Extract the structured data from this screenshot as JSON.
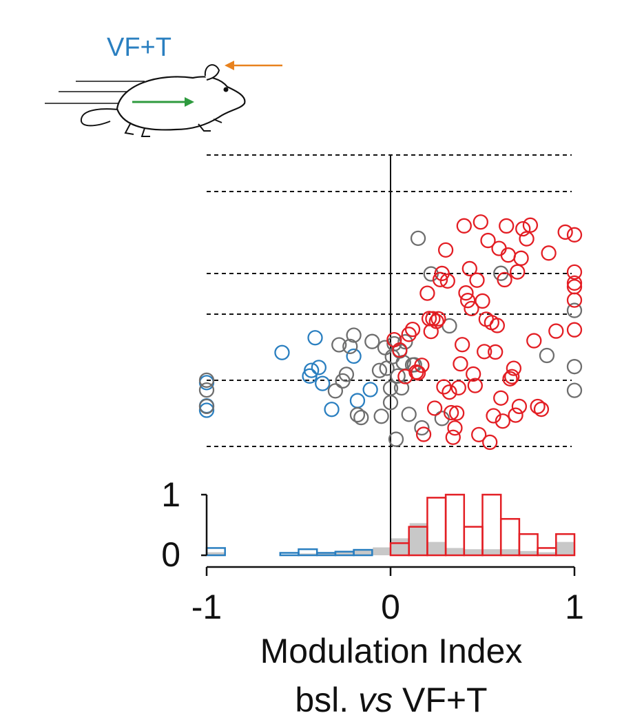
{
  "icon": {
    "label": "VF+T",
    "label_color": "#2a7fc0",
    "name": "running-mouse-icon",
    "arrow_colors": {
      "head": "#e8821e",
      "body": "#2e9a3e"
    }
  },
  "colors": {
    "suppressed": "#2a7fc0",
    "enhanced": "#e31e24",
    "nonsignificant": "#6e6e6e",
    "hist_fill": "#c8c8c8"
  },
  "chart_data": [
    {
      "type": "scatter",
      "title": "",
      "xlabel": "",
      "ylabel": "",
      "xlim": [
        -1,
        1
      ],
      "dashed_rows": [
        1,
        2,
        3,
        4,
        5,
        6
      ],
      "zero_line": true,
      "series": [
        {
          "class": "suppressed",
          "color": "#2a7fc0",
          "x": [
            -1.0,
            -1.0,
            -1.0,
            -0.59,
            -0.43,
            -0.44,
            -0.41,
            -0.32,
            -0.37,
            -0.39,
            -0.2,
            -0.18,
            -0.11
          ]
        },
        {
          "class": "nonsignificant",
          "color": "#6e6e6e",
          "x": [
            -1.0,
            -1.0,
            -1.0,
            -0.3,
            -0.28,
            -0.26,
            -0.24,
            -0.22,
            -0.2,
            -0.18,
            -0.16,
            -0.1,
            -0.06,
            -0.05,
            -0.03,
            -0.02,
            0.0,
            0.0,
            0.01,
            0.02,
            0.03,
            0.04,
            0.05,
            0.06,
            0.07,
            0.08,
            0.1,
            0.12,
            0.13,
            0.15,
            0.17,
            0.22,
            0.28,
            0.32,
            0.6,
            0.85,
            1.0,
            1.0,
            1.0
          ]
        },
        {
          "class": "enhanced",
          "color": "#e31e24",
          "x": [
            0.02,
            0.05,
            0.08,
            0.1,
            0.12,
            0.14,
            0.15,
            0.17,
            0.18,
            0.2,
            0.21,
            0.22,
            0.23,
            0.24,
            0.25,
            0.26,
            0.27,
            0.28,
            0.29,
            0.3,
            0.31,
            0.32,
            0.33,
            0.34,
            0.35,
            0.36,
            0.37,
            0.38,
            0.39,
            0.4,
            0.41,
            0.42,
            0.43,
            0.44,
            0.45,
            0.46,
            0.47,
            0.48,
            0.49,
            0.5,
            0.51,
            0.52,
            0.53,
            0.54,
            0.55,
            0.56,
            0.57,
            0.58,
            0.59,
            0.6,
            0.61,
            0.62,
            0.63,
            0.64,
            0.65,
            0.66,
            0.67,
            0.68,
            0.69,
            0.7,
            0.71,
            0.72,
            0.74,
            0.76,
            0.78,
            0.8,
            0.82,
            0.86,
            0.9,
            0.95,
            1.0,
            1.0,
            1.0,
            1.0,
            1.0,
            1.0
          ]
        }
      ]
    },
    {
      "type": "bar",
      "title": "",
      "xlabel": "Modulation Index",
      "xlabel_line2_pre": "bsl. ",
      "xlabel_line2_em": "vs",
      "xlabel_line2_post": " VF+T",
      "ylabel": "",
      "xlim": [
        -1,
        1
      ],
      "ylim": [
        0,
        1
      ],
      "yticks": [
        "1",
        "0"
      ],
      "xticks": [
        "-1",
        "0",
        "1"
      ],
      "bin_width": 0.1,
      "bin_edges_start": -1.0,
      "series": [
        {
          "name": "",
          "class": "all",
          "color": "#c8c8c8",
          "values": [
            0.05,
            0.0,
            0.0,
            0.0,
            0.0,
            0.03,
            0.05,
            0.06,
            0.1,
            0.13,
            0.28,
            0.53,
            0.22,
            0.12,
            0.1,
            0.1,
            0.1,
            0.07,
            0.05,
            0.22
          ]
        },
        {
          "name": "",
          "class": "suppressed",
          "color": "#2a7fc0",
          "values": [
            0.12,
            0.0,
            0.0,
            0.0,
            0.04,
            0.1,
            0.04,
            0.06,
            0.09,
            0.0,
            0.0,
            0.0,
            0.0,
            0.0,
            0.0,
            0.0,
            0.0,
            0.0,
            0.0,
            0.0
          ]
        },
        {
          "name": "",
          "class": "enhanced",
          "color": "#e31e24",
          "values": [
            0.0,
            0.0,
            0.0,
            0.0,
            0.0,
            0.0,
            0.0,
            0.0,
            0.0,
            0.0,
            0.2,
            0.47,
            0.95,
            1.0,
            0.47,
            1.0,
            0.6,
            0.35,
            0.12,
            0.35
          ]
        }
      ]
    }
  ]
}
